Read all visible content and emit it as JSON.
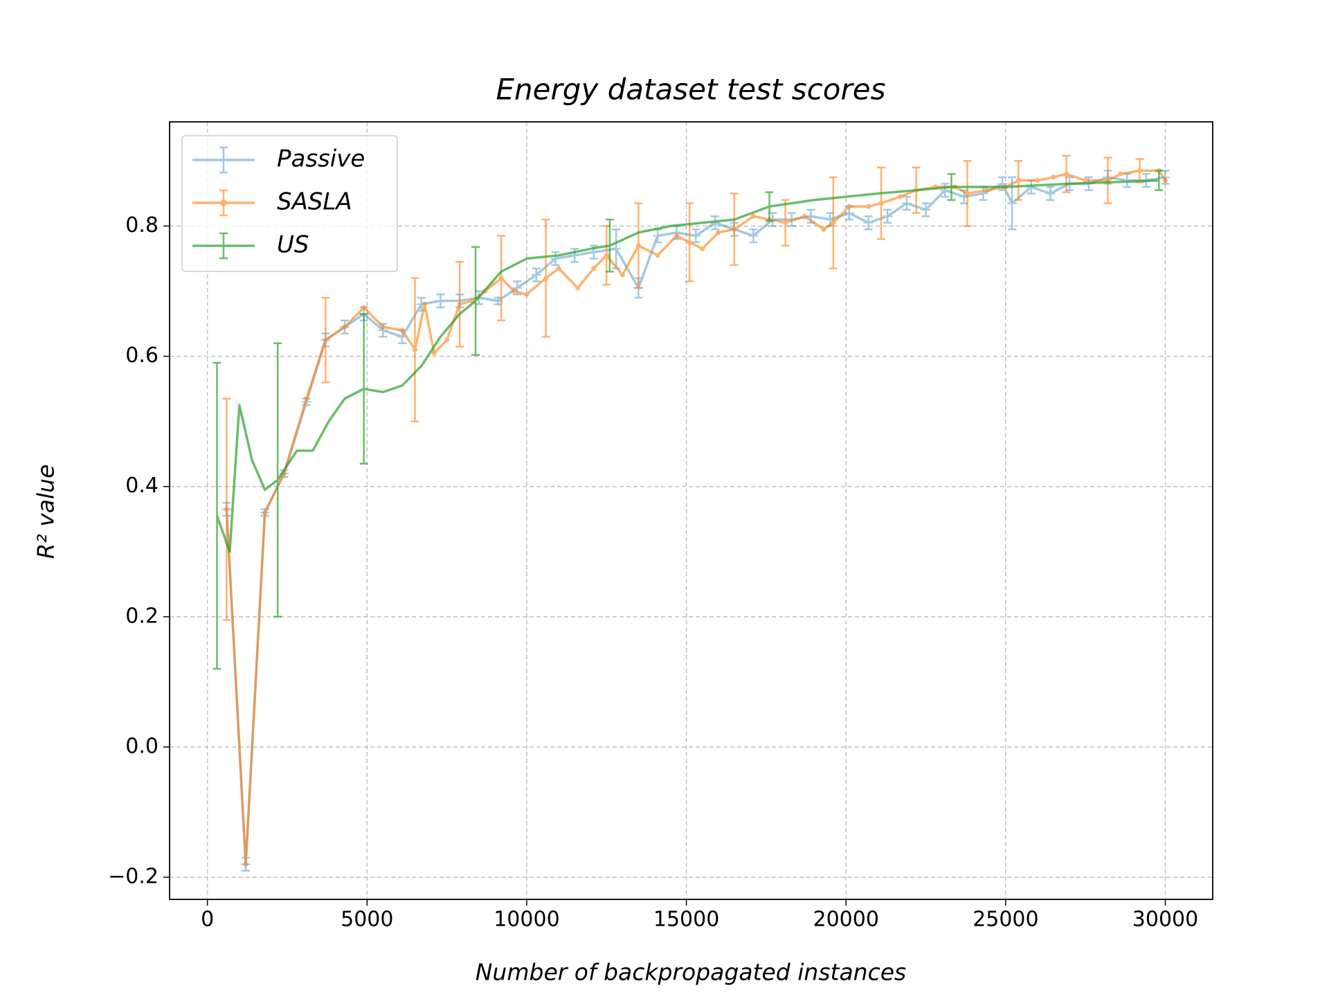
{
  "chart_data": {
    "type": "errorbar-line",
    "title": "Energy dataset test scores",
    "x_label": "Number of backpropagated instances",
    "y_label": "R² value",
    "xlim": [
      -1185,
      31485
    ],
    "ylim": [
      -0.234,
      0.96
    ],
    "xticks": [
      0,
      5000,
      10000,
      15000,
      20000,
      25000,
      30000
    ],
    "yticks": [
      {
        "value": -0.2,
        "label": "−0.2"
      },
      {
        "value": 0,
        "label": "0.0"
      },
      0.2,
      0.4,
      0.6,
      0.8
    ],
    "grid": true,
    "legend": "upper-left",
    "series": [
      {
        "name": "Passive",
        "color": "#1f77b4",
        "alpha": 0.4,
        "marker": "plus",
        "x": [
          600,
          1200,
          1800,
          2400,
          3100,
          3700,
          4300,
          4900,
          5500,
          6100,
          6700,
          7300,
          7900,
          8500,
          9100,
          9700,
          10300,
          10900,
          11500,
          12100,
          12800,
          13500,
          14100,
          14700,
          15300,
          15900,
          16500,
          17100,
          17700,
          18300,
          18900,
          19500,
          20100,
          20700,
          21300,
          21900,
          22500,
          23100,
          23700,
          24300,
          24900,
          25200,
          25800,
          26400,
          27000,
          27600,
          28200,
          28800,
          29400,
          30000
        ],
        "values": [
          0.365,
          -0.18,
          0.36,
          0.42,
          0.53,
          0.625,
          0.645,
          0.665,
          0.64,
          0.63,
          0.68,
          0.685,
          0.685,
          0.69,
          0.685,
          0.705,
          0.725,
          0.75,
          0.755,
          0.76,
          0.765,
          0.705,
          0.785,
          0.79,
          0.785,
          0.805,
          0.795,
          0.785,
          0.81,
          0.81,
          0.815,
          0.81,
          0.82,
          0.805,
          0.815,
          0.835,
          0.825,
          0.855,
          0.845,
          0.85,
          0.865,
          0.835,
          0.86,
          0.85,
          0.865,
          0.865,
          0.875,
          0.87,
          0.87,
          0.875
        ],
        "errors": [
          0.01,
          0.01,
          0.005,
          0.005,
          0.005,
          0.01,
          0.01,
          0.01,
          0.01,
          0.01,
          0.01,
          0.01,
          0.01,
          0.01,
          0.005,
          0.01,
          0.01,
          0.01,
          0.01,
          0.01,
          0.03,
          0.015,
          0.01,
          0.01,
          0.01,
          0.01,
          0.01,
          0.01,
          0.01,
          0.01,
          0.01,
          0.01,
          0.01,
          0.01,
          0.01,
          0.01,
          0.01,
          0.01,
          0.01,
          0.01,
          0.01,
          0.04,
          0.01,
          0.01,
          0.01,
          0.01,
          0.01,
          0.01,
          0.01,
          0.01
        ]
      },
      {
        "name": "SASLA",
        "color": "#ff7f0e",
        "alpha": 0.6,
        "marker": "dot",
        "x": [
          600,
          1200,
          1800,
          2400,
          3100,
          3700,
          4300,
          4900,
          5500,
          6100,
          6500,
          6800,
          7100,
          7500,
          7900,
          8300,
          8700,
          9200,
          9600,
          10000,
          10600,
          11000,
          11600,
          12100,
          12500,
          13000,
          13500,
          14100,
          14700,
          15100,
          15500,
          16000,
          16500,
          17100,
          17600,
          18100,
          18700,
          19300,
          19600,
          20100,
          20700,
          21100,
          21700,
          22200,
          22800,
          23400,
          23800,
          24400,
          25000,
          25400,
          26000,
          26500,
          26900,
          27500,
          28200,
          28600,
          29200,
          29800,
          30000
        ],
        "values": [
          0.365,
          -0.18,
          0.36,
          0.42,
          0.535,
          0.625,
          0.645,
          0.675,
          0.645,
          0.64,
          0.61,
          0.68,
          0.605,
          0.625,
          0.68,
          0.685,
          0.7,
          0.72,
          0.7,
          0.695,
          0.72,
          0.735,
          0.705,
          0.735,
          0.755,
          0.725,
          0.77,
          0.755,
          0.785,
          0.775,
          0.765,
          0.79,
          0.795,
          0.815,
          0.81,
          0.805,
          0.815,
          0.795,
          0.805,
          0.83,
          0.83,
          0.835,
          0.845,
          0.855,
          0.86,
          0.86,
          0.85,
          0.855,
          0.86,
          0.87,
          0.87,
          0.875,
          0.88,
          0.87,
          0.87,
          0.88,
          0.885,
          0.885,
          0.87
        ],
        "errors": [
          0.17,
          null,
          null,
          null,
          null,
          0.065,
          null,
          null,
          null,
          null,
          0.11,
          null,
          null,
          null,
          0.065,
          null,
          null,
          0.065,
          null,
          null,
          0.09,
          null,
          null,
          null,
          0.045,
          null,
          0.065,
          null,
          null,
          0.06,
          null,
          null,
          0.055,
          null,
          null,
          0.035,
          null,
          null,
          0.07,
          null,
          null,
          0.055,
          null,
          0.035,
          null,
          null,
          0.05,
          null,
          null,
          0.03,
          null,
          null,
          0.028,
          null,
          0.035,
          null,
          0.018,
          null,
          null
        ]
      },
      {
        "name": "US",
        "color": "#2ca02c",
        "alpha": 0.7,
        "marker": "none",
        "x": [
          300,
          700,
          1000,
          1400,
          1800,
          2200,
          2800,
          3300,
          3800,
          4300,
          4900,
          5500,
          6100,
          6700,
          7300,
          7900,
          8400,
          9200,
          10000,
          11000,
          12000,
          12600,
          13500,
          14500,
          15500,
          16500,
          17600,
          19000,
          21000,
          22200,
          23300,
          25000,
          27000,
          29800
        ],
        "values": [
          0.355,
          0.3,
          0.525,
          0.44,
          0.395,
          0.41,
          0.455,
          0.455,
          0.5,
          0.535,
          0.55,
          0.545,
          0.555,
          0.585,
          0.63,
          0.665,
          0.685,
          0.73,
          0.75,
          0.755,
          0.765,
          0.77,
          0.79,
          0.8,
          0.805,
          0.81,
          0.83,
          0.84,
          0.85,
          0.855,
          0.86,
          0.86,
          0.865,
          0.87
        ],
        "errors": [
          0.235,
          null,
          null,
          null,
          null,
          0.21,
          null,
          null,
          null,
          null,
          0.115,
          null,
          null,
          null,
          null,
          null,
          0.083,
          null,
          null,
          null,
          null,
          0.04,
          null,
          null,
          null,
          null,
          0.022,
          null,
          null,
          null,
          0.02,
          null,
          null,
          0.015
        ]
      }
    ]
  }
}
